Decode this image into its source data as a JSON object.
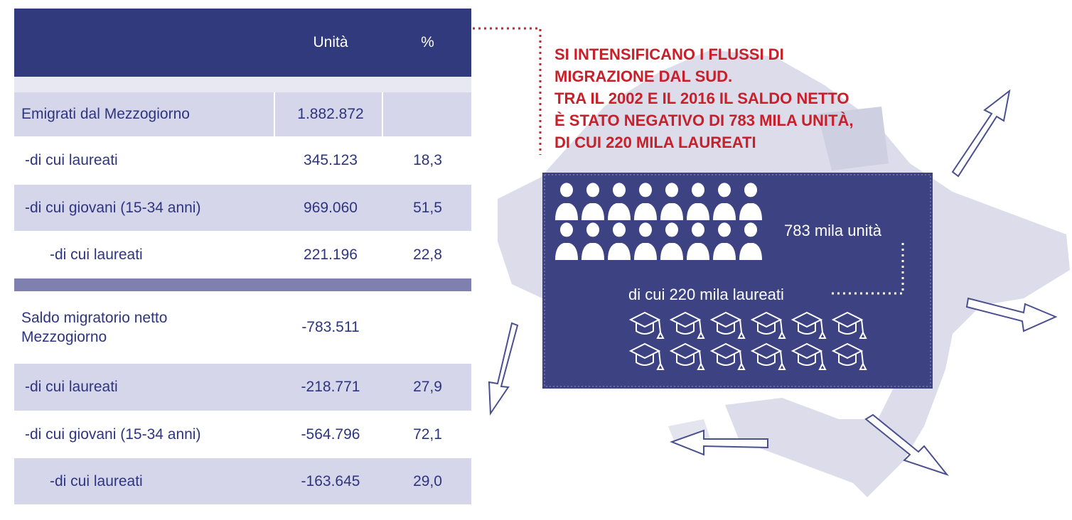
{
  "table": {
    "header": {
      "units": "Unità",
      "percent": "%"
    },
    "rows": [
      [
        "Emigrati dal Mezzogiorno",
        "1.882.872"
      ],
      [
        "-di cui laureati",
        "345.123",
        "18,3"
      ],
      [
        "-di cui giovani (15-34 anni)",
        "969.060",
        "51,5"
      ],
      [
        "-di cui laureati",
        "221.196",
        "22,8"
      ],
      [
        "Saldo migratorio netto Mezzogiorno",
        "-783.511"
      ],
      [
        "-di cui laureati",
        "-218.771",
        "27,9"
      ],
      [
        "-di cui giovani (15-34 anni)",
        "-564.796",
        "72,1"
      ],
      [
        "-di cui laureati",
        "-163.645",
        "29,0"
      ]
    ]
  },
  "headline": [
    "SI INTENSIFICANO I FLUSSI DI",
    "MIGRAZIONE DAL SUD.",
    "TRA IL 2002 E IL 2016  IL SALDO NETTO",
    "È STATO NEGATIVO DI 783 MILA UNITÀ,",
    "DI CUI 220 MILA LAUREATI"
  ],
  "box": {
    "total": "783 mila unità",
    "graduates": "di cui 220 mila laureati"
  }
}
